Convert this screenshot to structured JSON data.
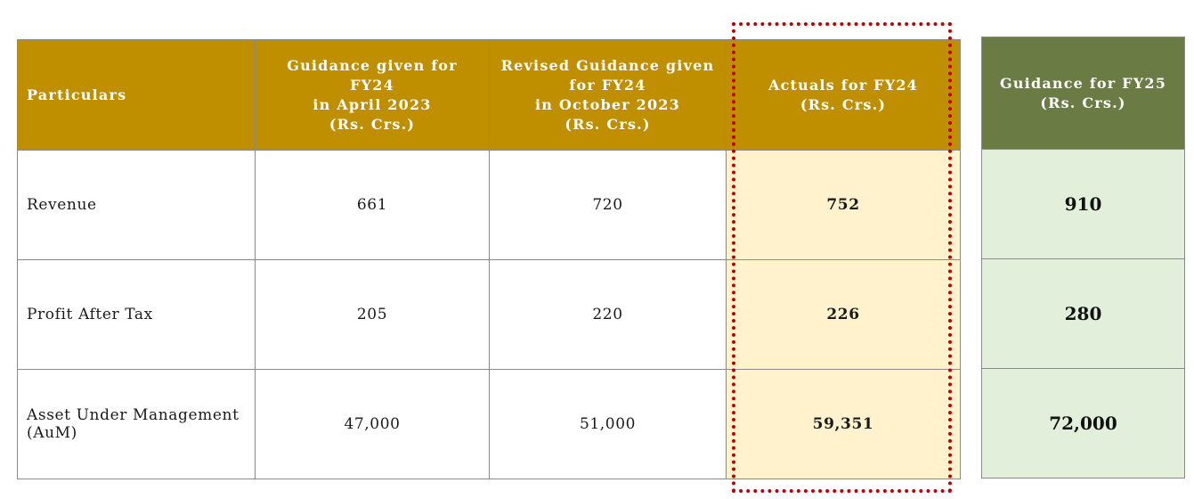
{
  "table": {
    "headers": {
      "particulars": "Particulars",
      "april": [
        "Guidance given for",
        "FY24",
        "in April 2023",
        "(Rs. Crs.)"
      ],
      "october": [
        "Revised Guidance given",
        "for FY24",
        "in October 2023",
        "(Rs. Crs.)"
      ],
      "actuals": [
        "Actuals for FY24",
        "(Rs. Crs.)"
      ]
    },
    "rows": [
      {
        "label": [
          "Revenue"
        ],
        "april": "661",
        "october": "720",
        "actual": "752"
      },
      {
        "label": [
          "Profit After Tax"
        ],
        "april": "205",
        "october": "220",
        "actual": "226"
      },
      {
        "label": [
          "Asset Under Management",
          "(AuM)"
        ],
        "april": "47,000",
        "october": "51,000",
        "actual": "59,351"
      }
    ]
  },
  "fy25": {
    "header": [
      "Guidance for FY25",
      "(Rs. Crs.)"
    ],
    "values": [
      "910",
      "280",
      "72,000"
    ]
  },
  "colors": {
    "header_gold": "#bf8f00",
    "actuals_fill": "#fff2cc",
    "fy25_header": "#6b7b44",
    "fy25_fill": "#e2efda",
    "highlight_border": "#c00000"
  }
}
